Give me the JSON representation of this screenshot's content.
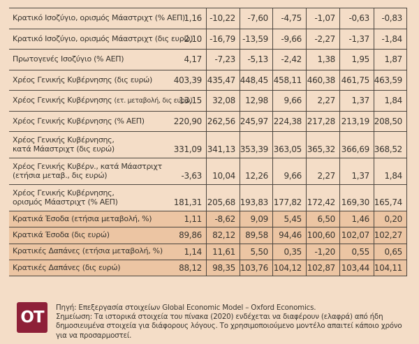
{
  "colors": {
    "background": "#f4ddc7",
    "highlight_row": "#ecc5a3",
    "grid_line": "#4c463f",
    "text": "#39352f",
    "logo_background": "#8e2038"
  },
  "chart_data": {
    "type": "table",
    "title": "",
    "columns_count": 7,
    "rows": [
      {
        "label": "Κρατικό Ισοζύγιο, ορισμός Μάαστριχτ (% ΑΕΠ)",
        "values": [
          "1,16",
          "-10,22",
          "-7,60",
          "-4,75",
          "-1,07",
          "-0,63",
          "-0,83"
        ],
        "highlighted": false
      },
      {
        "label": "Κρατικό Ισοζύγιο, ορισμός Μάαστριχτ (δις ευρώ)",
        "values": [
          "2,10",
          "-16,79",
          "-13,59",
          "-9,66",
          "-2,27",
          "-1,37",
          "-1,84"
        ],
        "highlighted": false
      },
      {
        "label": "Πρωτογενές Ισοζύγιο (% ΑΕΠ)",
        "values": [
          "4,17",
          "-7,23",
          "-5,13",
          "-2,42",
          "1,38",
          "1,95",
          "1,87"
        ],
        "highlighted": false
      },
      {
        "label": "Χρέος Γενικής Κυβέρνησης (δις ευρώ)",
        "values": [
          "403,39",
          "435,47",
          "448,45",
          "458,11",
          "460,38",
          "461,75",
          "463,59"
        ],
        "highlighted": false
      },
      {
        "label": "Χρέος Γενικής Κυβέρνησης ",
        "label_small": "(ετ. μεταβολή, δις ευρώ)",
        "values": [
          "13,15",
          "32,08",
          "12,98",
          "9,66",
          "2,27",
          "1,37",
          "1,84"
        ],
        "highlighted": false
      },
      {
        "label": "Χρέος Γενικής Κυβέρνησης (% ΑΕΠ)",
        "values": [
          "220,90",
          "262,56",
          "245,97",
          "224,38",
          "217,28",
          "213,19",
          "208,50"
        ],
        "highlighted": false
      },
      {
        "label": "Χρέος Γενικής Κυβέρνησης,",
        "label2": "κατά Μάαστριχτ (δις ευρώ)",
        "values": [
          "331,09",
          "341,13",
          "353,39",
          "363,05",
          "365,32",
          "366,69",
          "368,52"
        ],
        "highlighted": false
      },
      {
        "label": "Χρέος Γενικής Κυβέρν., κατά Μάαστριχτ",
        "label2": "(ετήσια μεταβ., δις ευρώ)",
        "values": [
          "-3,63",
          "10,04",
          "12,26",
          "9,66",
          "2,27",
          "1,37",
          "1,84"
        ],
        "highlighted": false
      },
      {
        "label": "Χρέος Γενικής Κυβέρνησης,",
        "label2": "ορισμός Μάαστριχτ (% ΑΕΠ)",
        "values": [
          "181,31",
          "205,68",
          "193,83",
          "177,82",
          "172,42",
          "169,30",
          "165,74"
        ],
        "highlighted": false
      },
      {
        "label": "Κρατικά Έσοδα (ετήσια μεταβολή, %)",
        "values": [
          "1,11",
          "-8,62",
          "9,09",
          "5,45",
          "6,50",
          "1,46",
          "0,20"
        ],
        "highlighted": true
      },
      {
        "label": "Κρατικά Έσοδα (δις ευρώ)",
        "values": [
          "89,86",
          "82,12",
          "89,58",
          "94,46",
          "100,60",
          "102,07",
          "102,27"
        ],
        "highlighted": true
      },
      {
        "label": "Κρατικές Δαπάνες (ετήσια μεταβολή, %)",
        "values": [
          "1,14",
          "11,61",
          "5,50",
          "0,35",
          "-1,20",
          "0,55",
          "0,65"
        ],
        "highlighted": true
      },
      {
        "label": "Κρατικές Δαπάνες (δις ευρώ)",
        "values": [
          "88,12",
          "98,35",
          "103,76",
          "104,12",
          "102,87",
          "103,44",
          "104,11"
        ],
        "highlighted": true
      }
    ]
  },
  "footer": {
    "logo_text": "OT",
    "source": "Πηγή: Επεξεργασία στοιχείων Global Economic Model – Oxford Economics.",
    "note": "Σημείωση: Τα ιστορικά στοιχεία του πίνακα (2020) ενδέχεται να διαφέρουν (ελαφρά) από ήδη δημοσιευμένα στοιχεία για διάφορους λόγους. Το χρησιμοποιούμενο μοντέλο απαιτεί κάποιο χρόνο για να προσαρμοστεί."
  }
}
